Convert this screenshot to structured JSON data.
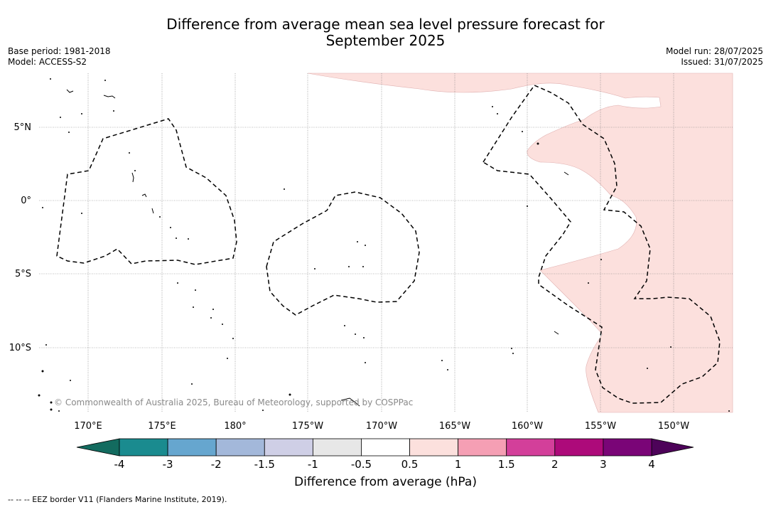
{
  "title": {
    "line1": "Difference from average mean sea level pressure forecast for",
    "line2": "September 2025"
  },
  "meta_left": {
    "base_period": "Base period: 1981-2018",
    "model": "Model: ACCESS-S2"
  },
  "meta_right": {
    "model_run": "Model run: 28/07/2025",
    "issued": "Issued: 31/07/2025"
  },
  "map": {
    "lon_ticks": [
      "170°E",
      "175°E",
      "180°",
      "175°W",
      "170°W",
      "165°W",
      "160°W",
      "155°W",
      "150°W"
    ],
    "lat_ticks": [
      "5°N",
      "0°",
      "5°S",
      "10°S"
    ],
    "copyright": "© Commonwealth of Australia 2025, Bureau of Meteorology, supported by COSPPac",
    "anomaly_fill_color": "#fce0dd",
    "eez_color": "#000000"
  },
  "colorbar": {
    "label": "Difference from average (hPa)",
    "ticks": [
      "-4",
      "-3",
      "-2",
      "-1.5",
      "-1",
      "-0.5",
      "0.5",
      "1",
      "1.5",
      "2",
      "3",
      "4"
    ],
    "colors": [
      "#1a8b8f",
      "#66a6cf",
      "#a3b8da",
      "#cfcfe6",
      "#e7e7e7",
      "#ffffff",
      "#fce0dd",
      "#f59fb4",
      "#d33f9a",
      "#ad0a7a",
      "#7a0577"
    ],
    "low_extend_color": "#136b5f",
    "high_extend_color": "#4d0359"
  },
  "footer": {
    "legend": "--  --  -- EEZ border V11 (Flanders Marine Institute, 2019)."
  }
}
